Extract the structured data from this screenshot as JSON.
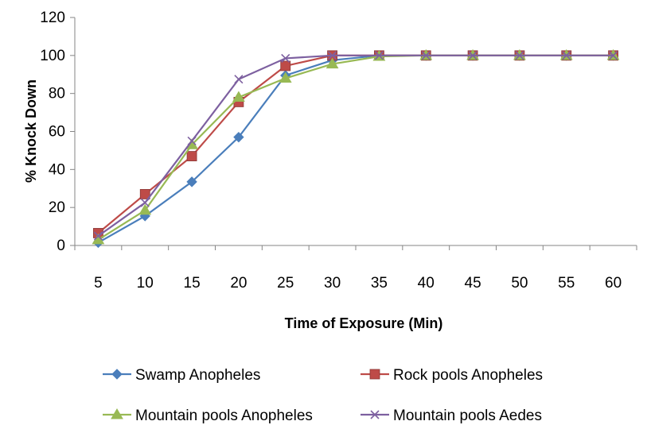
{
  "chart_data": {
    "type": "line",
    "title": "",
    "xlabel": "Time of Exposure (Min)",
    "ylabel": "% Knock Down",
    "categories": [
      "5",
      "10",
      "15",
      "20",
      "25",
      "30",
      "35",
      "40",
      "45",
      "50",
      "55",
      "60"
    ],
    "ylim": [
      0,
      120
    ],
    "yticks": [
      0,
      20,
      40,
      60,
      80,
      100,
      120
    ],
    "grid": false,
    "legend_position": "bottom",
    "series": [
      {
        "name": "Swamp Anopheles",
        "color": "#4a7ebb",
        "marker": "diamond",
        "values": [
          1.5,
          15.5,
          33.5,
          57,
          89.5,
          97.5,
          100,
          100,
          100,
          100,
          100,
          100
        ]
      },
      {
        "name": "Rock pools Anopheles",
        "color": "#be4b48",
        "marker": "square",
        "values": [
          6.5,
          27,
          47,
          75.5,
          94.5,
          100,
          100,
          100,
          100,
          100,
          100,
          100
        ]
      },
      {
        "name": "Mountain pools Anopheles",
        "color": "#98b954",
        "marker": "triangle",
        "values": [
          3,
          18.5,
          53,
          78,
          88,
          95.5,
          99.5,
          100,
          100,
          100,
          100,
          100
        ]
      },
      {
        "name": "Mountain pools Aedes",
        "color": "#7d60a0",
        "marker": "x",
        "values": [
          5,
          22.5,
          55,
          87.5,
          98.5,
          100,
          100,
          100,
          100,
          100,
          100,
          100
        ]
      }
    ]
  }
}
